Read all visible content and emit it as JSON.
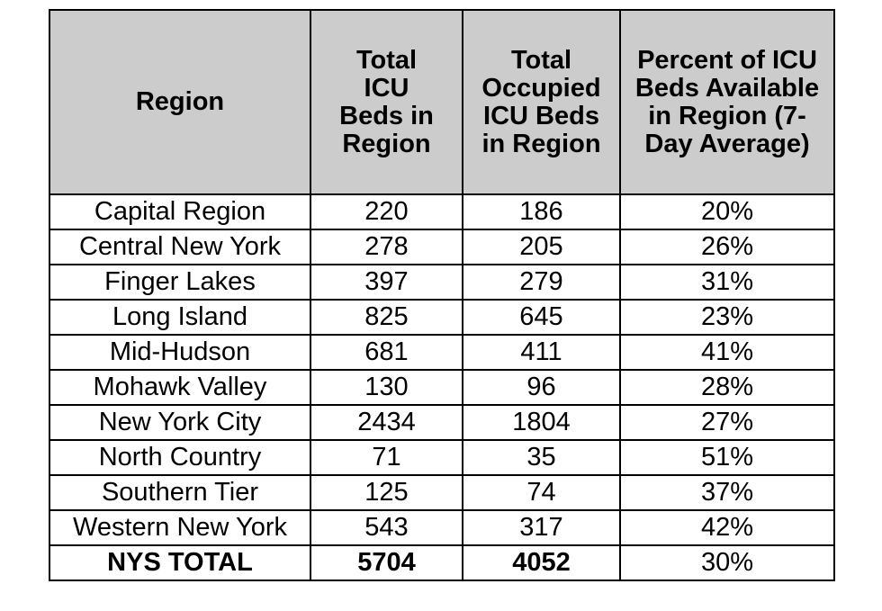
{
  "table": {
    "headers": [
      "Region",
      "Total ICU Beds in Region",
      "Total Occupied ICU Beds in Region",
      "Percent of ICU Beds Available in Region (7-Day Average)"
    ],
    "rows": [
      {
        "region": "Capital Region",
        "total_beds": "220",
        "occupied_beds": "186",
        "percent_available": "20%"
      },
      {
        "region": "Central New York",
        "total_beds": "278",
        "occupied_beds": "205",
        "percent_available": "26%"
      },
      {
        "region": "Finger Lakes",
        "total_beds": "397",
        "occupied_beds": "279",
        "percent_available": "31%"
      },
      {
        "region": "Long Island",
        "total_beds": "825",
        "occupied_beds": "645",
        "percent_available": "23%"
      },
      {
        "region": "Mid-Hudson",
        "total_beds": "681",
        "occupied_beds": "411",
        "percent_available": "41%"
      },
      {
        "region": "Mohawk Valley",
        "total_beds": "130",
        "occupied_beds": "96",
        "percent_available": "28%"
      },
      {
        "region": "New York City",
        "total_beds": "2434",
        "occupied_beds": "1804",
        "percent_available": "27%"
      },
      {
        "region": "North Country",
        "total_beds": "71",
        "occupied_beds": "35",
        "percent_available": "51%"
      },
      {
        "region": "Southern Tier",
        "total_beds": "125",
        "occupied_beds": "74",
        "percent_available": "37%"
      },
      {
        "region": "Western New York",
        "total_beds": "543",
        "occupied_beds": "317",
        "percent_available": "42%"
      }
    ],
    "total": {
      "region": "NYS TOTAL",
      "total_beds": "5704",
      "occupied_beds": "4052",
      "percent_available": "30%"
    }
  },
  "colors": {
    "header_background": "#cccccc",
    "border": "#000000"
  }
}
